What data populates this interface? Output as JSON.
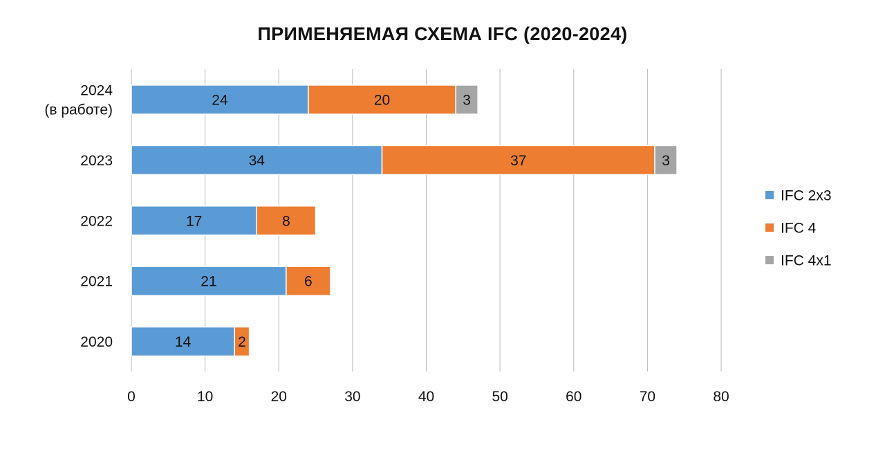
{
  "chart_data": {
    "type": "bar",
    "orientation": "horizontal",
    "stacked": true,
    "title": "ПРИМЕНЯЕМАЯ СХЕМА IFC (2020-2024)",
    "categories": [
      "2024\n(в работе)",
      "2023",
      "2022",
      "2021",
      "2020"
    ],
    "series": [
      {
        "name": "IFC 2x3",
        "color": "#5b9bd5",
        "values": [
          24,
          34,
          17,
          21,
          14
        ]
      },
      {
        "name": "IFC 4",
        "color": "#ed7d31",
        "values": [
          20,
          37,
          8,
          6,
          2
        ]
      },
      {
        "name": "IFC 4x1",
        "color": "#a5a5a5",
        "values": [
          3,
          3,
          null,
          null,
          null
        ]
      }
    ],
    "xlim": [
      0,
      80
    ],
    "xticks": [
      0,
      10,
      20,
      30,
      40,
      50,
      60,
      70,
      80
    ],
    "grid": "vertical",
    "legend": "right",
    "data_labels": true
  }
}
